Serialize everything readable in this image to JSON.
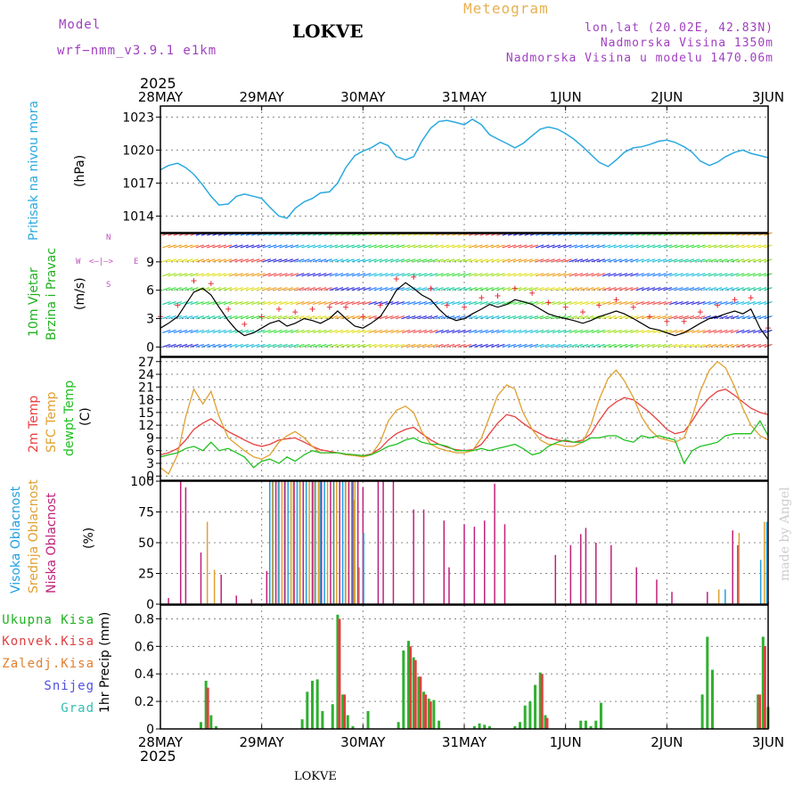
{
  "header": {
    "model_label": "Model",
    "model_name": "wrf−nmm_v3.9.1  e1km",
    "location": "LOKVE",
    "meteogram": "Meteogram",
    "coords": "lon,lat (20.02E, 42.83N)",
    "altitude": "Nadmorska Visina 1350m",
    "model_altitude": "Nadmorska Visina u modelu 1470.06m",
    "year_top": "2025",
    "year_bottom": "2025",
    "footer": "LOKVE",
    "watermark": "made by Angel"
  },
  "colors": {
    "pressure": "#2aa9e0",
    "wind_speed": "#000000",
    "gust": "#e8303a",
    "t2m": "#e84040",
    "sfc": "#e0a030",
    "dewpt": "#20c020",
    "high_cloud": "#20a0e0",
    "mid_cloud": "#e0a030",
    "low_cloud": "#c0207a",
    "total_precip": "#30b030",
    "conv_precip": "#e04040",
    "label_green": "#20b020",
    "label_purple": "#a040c0",
    "label_orange": "#e08030"
  },
  "dates": [
    "28MAY",
    "29MAY",
    "30MAY",
    "31MAY",
    "1JUN",
    "2JUN",
    "3JUN"
  ],
  "labels": {
    "pressure_name": "Pritisak na nivou mora",
    "pressure_unit": "(hPa)",
    "wind_line1": "10m Vjetar",
    "wind_line2": "Brzina i Pravac",
    "wind_unit": "(m/s)",
    "compass_n": "N",
    "compass_s": "S",
    "compass_w": "W",
    "compass_e": "E",
    "temp_2m": "2m Temp",
    "temp_sfc": "SFC Temp",
    "temp_dew": "dewpt Temp",
    "temp_unit": "(C)",
    "cloud_high": "Visoka Oblacnost",
    "cloud_mid": "Srednja Oblacnost",
    "cloud_low": "Niska Oblacnost",
    "cloud_unit": "(%)",
    "precip_total": "Ukupna Kisa",
    "precip_conv": "Konvek.Kisa",
    "precip_frz": "Zaledj.Kisa",
    "precip_snow": "Snijeg",
    "precip_grad": "Grad",
    "precip_unit": "1hr Precip (mm)"
  },
  "chart_data": [
    {
      "type": "line",
      "title": "",
      "ylabel": "Pritisak na nivou mora (hPa)",
      "ylim": [
        1012.5,
        1024
      ],
      "yticks": [
        "1014",
        "1017",
        "1020",
        "1023"
      ],
      "x_unit": "days from 28MAY 00UTC",
      "x": [
        0,
        0.08,
        0.17,
        0.25,
        0.33,
        0.42,
        0.5,
        0.58,
        0.67,
        0.75,
        0.83,
        0.92,
        1.0,
        1.08,
        1.17,
        1.25,
        1.33,
        1.42,
        1.5,
        1.58,
        1.67,
        1.75,
        1.83,
        1.92,
        2.0,
        2.08,
        2.17,
        2.25,
        2.33,
        2.42,
        2.5,
        2.58,
        2.67,
        2.75,
        2.83,
        2.92,
        3.0,
        3.08,
        3.17,
        3.25,
        3.33,
        3.42,
        3.5,
        3.58,
        3.67,
        3.75,
        3.83,
        3.92,
        4.0,
        4.08,
        4.17,
        4.25,
        4.33,
        4.42,
        4.5,
        4.58,
        4.67,
        4.75,
        4.83,
        4.92,
        5.0,
        5.08,
        5.17,
        5.25,
        5.33,
        5.42,
        5.5,
        5.58,
        5.67,
        5.75,
        5.83,
        5.92,
        6.0
      ],
      "series": [
        {
          "values": [
            1018.2,
            1018.6,
            1018.8,
            1018.4,
            1017.8,
            1016.8,
            1015.8,
            1015.0,
            1015.1,
            1015.8,
            1016.0,
            1015.8,
            1015.6,
            1014.8,
            1014.0,
            1013.8,
            1014.7,
            1015.3,
            1015.6,
            1016.1,
            1016.2,
            1017.0,
            1018.4,
            1019.5,
            1019.9,
            1020.2,
            1020.7,
            1020.4,
            1019.4,
            1019.1,
            1019.4,
            1020.8,
            1022.0,
            1022.6,
            1022.7,
            1022.5,
            1022.3,
            1022.8,
            1022.3,
            1021.4,
            1021.0,
            1020.6,
            1020.2,
            1020.6,
            1021.3,
            1021.9,
            1022.1,
            1021.9,
            1021.5,
            1021.0,
            1020.3,
            1019.6,
            1018.9,
            1018.5,
            1019.1,
            1019.8,
            1020.2,
            1020.3,
            1020.5,
            1020.8,
            1020.9,
            1020.7,
            1020.3,
            1019.8,
            1019.0,
            1018.6,
            1018.9,
            1019.4,
            1019.8,
            1020.0,
            1019.7,
            1019.5,
            1019.3
          ]
        }
      ]
    },
    {
      "type": "line",
      "title": "",
      "ylabel": "10m Vjetar Brzina i Pravac (m/s)",
      "ylim": [
        -1,
        12
      ],
      "yticks": [
        "0",
        "3",
        "6",
        "9"
      ],
      "x": [
        0,
        0.08,
        0.17,
        0.25,
        0.33,
        0.42,
        0.5,
        0.58,
        0.67,
        0.75,
        0.83,
        0.92,
        1.0,
        1.08,
        1.17,
        1.25,
        1.33,
        1.42,
        1.5,
        1.58,
        1.67,
        1.75,
        1.83,
        1.92,
        2.0,
        2.08,
        2.17,
        2.25,
        2.33,
        2.42,
        2.5,
        2.58,
        2.67,
        2.75,
        2.83,
        2.92,
        3.0,
        3.08,
        3.17,
        3.25,
        3.33,
        3.42,
        3.5,
        3.58,
        3.67,
        3.75,
        3.83,
        3.92,
        4.0,
        4.08,
        4.17,
        4.25,
        4.33,
        4.42,
        4.5,
        4.58,
        4.67,
        4.75,
        4.83,
        4.92,
        5.0,
        5.08,
        5.17,
        5.25,
        5.33,
        5.42,
        5.5,
        5.58,
        5.67,
        5.75,
        5.83,
        5.92,
        6.0
      ],
      "series": [
        {
          "values": [
            2.0,
            2.5,
            3.2,
            4.5,
            5.8,
            6.2,
            5.5,
            4.2,
            2.8,
            1.8,
            1.2,
            1.5,
            2.0,
            2.5,
            2.8,
            2.2,
            2.5,
            3.0,
            2.8,
            2.5,
            3.0,
            3.8,
            3.0,
            2.2,
            2.0,
            2.5,
            3.2,
            4.5,
            6.0,
            6.8,
            6.2,
            5.5,
            5.0,
            4.0,
            3.2,
            2.8,
            3.0,
            3.5,
            4.0,
            4.5,
            4.2,
            4.5,
            5.0,
            4.8,
            4.5,
            4.0,
            3.5,
            3.2,
            3.0,
            2.8,
            2.5,
            2.8,
            3.2,
            3.5,
            3.8,
            3.5,
            3.0,
            2.5,
            2.0,
            1.8,
            1.5,
            1.2,
            1.5,
            2.0,
            2.5,
            3.0,
            3.2,
            3.5,
            3.8,
            3.5,
            4.0,
            2.0,
            0.8
          ]
        }
      ]
    },
    {
      "type": "line",
      "title": "",
      "ylabel": "Temp (C)",
      "ylim": [
        -1,
        28
      ],
      "yticks": [
        "0",
        "3",
        "6",
        "9",
        "12",
        "15",
        "18",
        "21",
        "24",
        "27"
      ],
      "x": [
        0,
        0.08,
        0.17,
        0.25,
        0.33,
        0.42,
        0.5,
        0.58,
        0.67,
        0.75,
        0.83,
        0.92,
        1.0,
        1.08,
        1.17,
        1.25,
        1.33,
        1.42,
        1.5,
        1.58,
        1.67,
        1.75,
        1.83,
        1.92,
        2.0,
        2.08,
        2.17,
        2.25,
        2.33,
        2.42,
        2.5,
        2.58,
        2.67,
        2.75,
        2.83,
        2.92,
        3.0,
        3.08,
        3.17,
        3.25,
        3.33,
        3.42,
        3.5,
        3.58,
        3.67,
        3.75,
        3.83,
        3.92,
        4.0,
        4.08,
        4.17,
        4.25,
        4.33,
        4.42,
        4.5,
        4.58,
        4.67,
        4.75,
        4.83,
        4.92,
        5.0,
        5.08,
        5.17,
        5.25,
        5.33,
        5.42,
        5.5,
        5.58,
        5.67,
        5.75,
        5.83,
        5.92,
        6.0
      ],
      "series": [
        {
          "name": "2m Temp",
          "values": [
            5.0,
            5.5,
            6.5,
            8.5,
            11.0,
            12.5,
            13.5,
            12.0,
            10.5,
            9.5,
            8.5,
            7.5,
            7.0,
            7.5,
            8.5,
            8.8,
            9.0,
            8.0,
            7.0,
            6.2,
            5.8,
            5.5,
            5.2,
            5.0,
            4.8,
            5.2,
            6.5,
            8.5,
            10.0,
            11.0,
            11.5,
            10.0,
            8.5,
            7.5,
            6.8,
            6.2,
            6.0,
            6.2,
            7.5,
            10.0,
            12.5,
            14.5,
            14.0,
            12.5,
            11.0,
            10.0,
            9.0,
            8.5,
            8.2,
            8.0,
            8.5,
            10.0,
            13.0,
            16.0,
            17.5,
            18.5,
            18.0,
            16.5,
            15.0,
            13.0,
            11.0,
            10.0,
            10.5,
            13.0,
            16.0,
            18.5,
            20.0,
            20.5,
            19.0,
            17.5,
            16.0,
            15.0,
            14.5
          ]
        },
        {
          "name": "SFC Temp",
          "values": [
            2.0,
            0.5,
            5.0,
            14.0,
            20.5,
            17.0,
            20.0,
            14.0,
            9.0,
            7.5,
            6.0,
            4.5,
            4.0,
            5.0,
            8.0,
            9.5,
            10.5,
            9.0,
            7.0,
            5.5,
            5.5,
            5.5,
            5.0,
            4.8,
            4.5,
            5.0,
            8.0,
            13.0,
            15.5,
            16.5,
            15.0,
            10.5,
            7.5,
            6.5,
            6.0,
            5.5,
            5.5,
            6.0,
            9.0,
            14.0,
            19.0,
            21.5,
            20.5,
            15.0,
            11.0,
            8.5,
            7.5,
            7.5,
            7.0,
            7.0,
            8.0,
            12.0,
            18.0,
            23.0,
            25.0,
            22.5,
            18.5,
            14.0,
            11.0,
            9.0,
            8.5,
            8.0,
            9.0,
            14.0,
            20.0,
            25.0,
            27.0,
            25.5,
            21.0,
            16.0,
            12.0,
            9.5,
            8.5
          ]
        },
        {
          "name": "dewpt Temp",
          "values": [
            4.5,
            5.0,
            5.5,
            6.5,
            7.0,
            6.0,
            8.0,
            6.0,
            6.5,
            5.5,
            4.5,
            2.0,
            3.5,
            4.0,
            3.0,
            4.5,
            3.5,
            5.0,
            6.0,
            5.5,
            5.5,
            5.5,
            5.2,
            5.0,
            4.8,
            5.0,
            6.0,
            7.0,
            7.5,
            8.5,
            9.0,
            8.0,
            7.5,
            7.5,
            7.0,
            6.0,
            6.0,
            6.0,
            6.5,
            6.0,
            6.5,
            7.0,
            7.5,
            6.5,
            5.0,
            5.5,
            7.0,
            8.0,
            8.5,
            8.0,
            8.0,
            9.0,
            9.0,
            9.5,
            9.5,
            8.5,
            8.0,
            9.5,
            9.0,
            9.5,
            9.0,
            8.5,
            3.0,
            6.0,
            7.0,
            7.5,
            8.0,
            9.5,
            10.0,
            10.0,
            10.0,
            13.0,
            9.5
          ]
        }
      ]
    },
    {
      "type": "bar",
      "title": "",
      "ylabel": "Oblacnost (%)",
      "ylim": [
        0,
        100
      ],
      "yticks": [
        "0",
        "25",
        "50",
        "75",
        "100"
      ],
      "series": [
        {
          "name": "Niska Oblacnost",
          "x": [
            0.08,
            0.2,
            0.25,
            0.4,
            0.6,
            0.75,
            0.9,
            1.05,
            1.9,
            2.0,
            2.15,
            2.2,
            2.3,
            2.5,
            2.6,
            2.8,
            2.85,
            3.0,
            3.1,
            3.2,
            3.3,
            3.4,
            3.9,
            4.05,
            4.15,
            4.2,
            4.3,
            4.45,
            4.7,
            4.9,
            5.05,
            5.4,
            5.65,
            5.7,
            6.0
          ],
          "values": [
            5,
            100,
            95,
            42,
            24,
            7,
            4,
            27,
            100,
            95,
            100,
            100,
            100,
            77,
            77,
            68,
            30,
            65,
            63,
            68,
            98,
            65,
            40,
            48,
            57,
            62,
            50,
            48,
            30,
            20,
            10,
            10,
            60,
            48,
            2
          ]
        },
        {
          "name": "Srednja Oblacnost",
          "x": [
            0.45,
            0.52,
            1.1,
            1.15,
            1.3,
            1.5,
            1.7,
            1.9,
            1.95,
            5.5,
            5.7,
            5.95
          ],
          "values": [
            67,
            28,
            100,
            100,
            100,
            100,
            100,
            85,
            30,
            12,
            58,
            67
          ]
        },
        {
          "name": "Visoka Oblacnost",
          "x": [
            1.08,
            1.2,
            1.35,
            1.55,
            1.8,
            1.98,
            5.55,
            5.9,
            5.96
          ],
          "values": [
            100,
            100,
            100,
            100,
            100,
            58,
            12,
            36,
            67
          ]
        }
      ]
    },
    {
      "type": "bar",
      "title": "",
      "ylabel": "1hr Precip (mm)",
      "ylim": [
        0,
        0.9
      ],
      "yticks": [
        "0",
        "0.2",
        "0.4",
        "0.6",
        "0.8"
      ],
      "series": [
        {
          "name": "Ukupna Kisa",
          "x": [
            0.4,
            0.45,
            0.5,
            0.55,
            1.4,
            1.45,
            1.5,
            1.55,
            1.6,
            1.7,
            1.75,
            1.8,
            1.85,
            1.9,
            2.05,
            2.2,
            2.35,
            2.4,
            2.45,
            2.5,
            2.55,
            2.6,
            2.65,
            2.7,
            2.75,
            3.1,
            3.15,
            3.2,
            3.25,
            3.5,
            3.55,
            3.6,
            3.65,
            3.7,
            3.75,
            3.8,
            4.15,
            4.2,
            4.25,
            4.3,
            4.35,
            5.35,
            5.4,
            5.45,
            5.9,
            5.95,
            6.0
          ],
          "values": [
            0.05,
            0.35,
            0.1,
            0.02,
            0.07,
            0.27,
            0.35,
            0.36,
            0.13,
            0.18,
            0.83,
            0.25,
            0.1,
            0.02,
            0.13,
            0.0,
            0.05,
            0.57,
            0.64,
            0.52,
            0.38,
            0.27,
            0.22,
            0.21,
            0.06,
            0.02,
            0.04,
            0.03,
            0.02,
            0.02,
            0.05,
            0.17,
            0.2,
            0.32,
            0.41,
            0.1,
            0.06,
            0.06,
            0.02,
            0.06,
            0.19,
            0.25,
            0.67,
            0.43,
            0.25,
            0.67,
            0.16
          ]
        },
        {
          "name": "Konvek.Kisa",
          "x": [
            0.45,
            1.75,
            1.8,
            2.45,
            2.5,
            2.55,
            2.6,
            2.65,
            3.75,
            3.8,
            5.9,
            5.95
          ],
          "values": [
            0.3,
            0.8,
            0.25,
            0.6,
            0.5,
            0.38,
            0.25,
            0.2,
            0.4,
            0.08,
            0.25,
            0.6
          ]
        }
      ]
    }
  ]
}
